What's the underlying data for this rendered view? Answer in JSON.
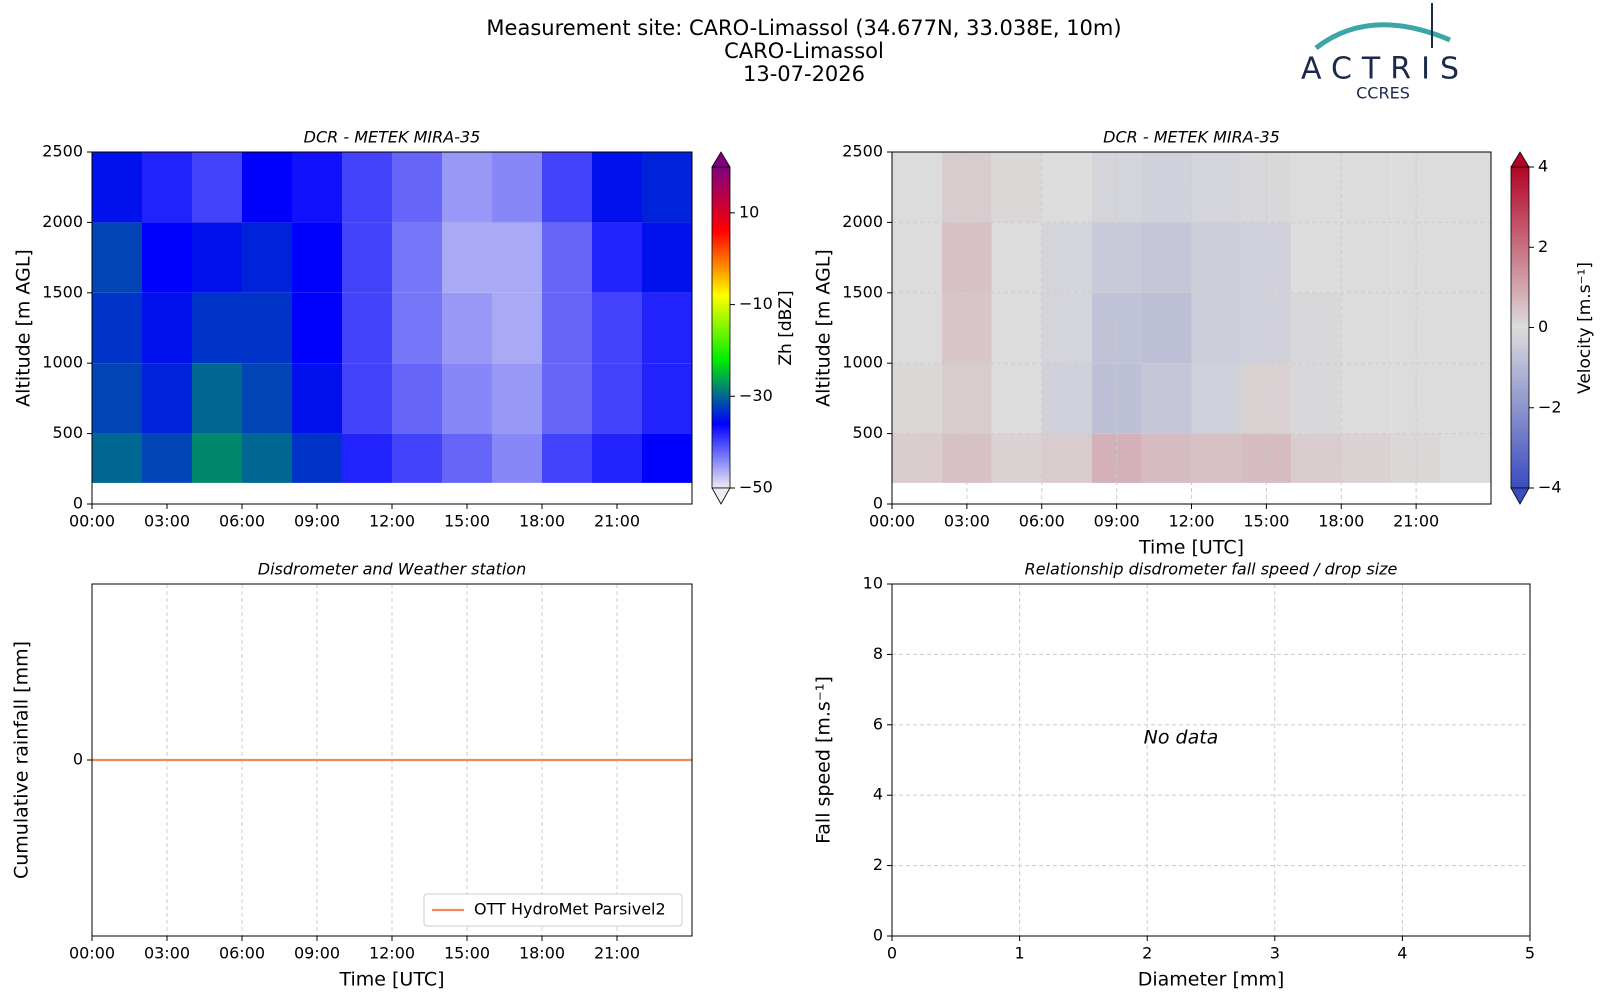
{
  "header": {
    "title": [
      "Measurement site: CARO-Limassol (34.677N, 33.038E, 10m)",
      "CARO-Limassol",
      "13-07-2026"
    ],
    "logo": "ACTRIS",
    "logo_subtitle": "CCRES"
  },
  "chart_data": [
    {
      "type": "heatmap",
      "title": "DCR - METEK MIRA-35",
      "ylabel": "Altitude [m AGL]",
      "xlim": [
        0,
        24
      ],
      "xticks": [
        {
          "value": 0,
          "label": "00:00"
        },
        {
          "value": 3,
          "label": "03:00"
        },
        {
          "value": 6,
          "label": "06:00"
        },
        {
          "value": 9,
          "label": "09:00"
        },
        {
          "value": 12,
          "label": "12:00"
        },
        {
          "value": 15,
          "label": "15:00"
        },
        {
          "value": 18,
          "label": "18:00"
        },
        {
          "value": 21,
          "label": "21:00"
        }
      ],
      "ylim": [
        0,
        2500
      ],
      "yticks": [
        0,
        500,
        1000,
        1500,
        2000,
        2500
      ],
      "grid": false,
      "x_bins": [
        0,
        2,
        4,
        6,
        8,
        10,
        12,
        14,
        16,
        18,
        20,
        22,
        24
      ],
      "y_bins": [
        150,
        500,
        1000,
        1500,
        2000,
        2500
      ],
      "values": [
        [
          -30,
          -32,
          -28,
          -30,
          -33,
          -38,
          -40,
          -42,
          -44,
          -40,
          -38,
          -36
        ],
        [
          -32,
          -34,
          -30,
          -32,
          -35,
          -40,
          -42,
          -44,
          -45,
          -42,
          -40,
          -38
        ],
        [
          -33,
          -35,
          -33,
          -33,
          -36,
          -40,
          -43,
          -45,
          -46,
          -42,
          -40,
          -38
        ],
        [
          -32,
          -36,
          -35,
          -34,
          -36,
          -40,
          -43,
          -46,
          -46,
          -42,
          -38,
          -35
        ],
        [
          -35,
          -38,
          -40,
          -36,
          -37,
          -40,
          -42,
          -45,
          -44,
          -40,
          -35,
          -34
        ]
      ],
      "colorbar": {
        "label": "Zh [dBZ]",
        "lim": [
          -50,
          20
        ],
        "ticks": [
          {
            "value": -50,
            "label": "−50"
          },
          {
            "value": -30,
            "label": "−30"
          },
          {
            "value": -10,
            "label": "−10"
          },
          10
        ],
        "colormap": [
          "#ececf2",
          "#0000ff",
          "#00ee00",
          "#ffff00",
          "#ff0000",
          "#800080"
        ]
      }
    },
    {
      "type": "heatmap",
      "title": "DCR - METEK MIRA-35",
      "ylabel": "Altitude [m AGL]",
      "xlabel": "Time [UTC]",
      "xlim": [
        0,
        24
      ],
      "xticks": [
        {
          "value": 0,
          "label": "00:00"
        },
        {
          "value": 3,
          "label": "03:00"
        },
        {
          "value": 6,
          "label": "06:00"
        },
        {
          "value": 9,
          "label": "09:00"
        },
        {
          "value": 12,
          "label": "12:00"
        },
        {
          "value": 15,
          "label": "15:00"
        },
        {
          "value": 18,
          "label": "18:00"
        },
        {
          "value": 21,
          "label": "21:00"
        }
      ],
      "ylim": [
        0,
        2500
      ],
      "yticks": [
        0,
        500,
        1000,
        1500,
        2000,
        2500
      ],
      "grid": true,
      "x_bins": [
        0,
        2,
        4,
        6,
        8,
        10,
        12,
        14,
        16,
        18,
        20,
        22,
        24
      ],
      "y_bins": [
        150,
        500,
        1000,
        1500,
        2000,
        2500
      ],
      "values": [
        [
          0.3,
          0.5,
          0.2,
          0.3,
          0.8,
          0.6,
          0.5,
          0.6,
          0.3,
          0.2,
          0.1,
          0
        ],
        [
          0.1,
          0.3,
          0,
          -0.3,
          -0.8,
          -0.6,
          -0.3,
          0.2,
          -0.1,
          0,
          0,
          0
        ],
        [
          0,
          0.4,
          0,
          -0.2,
          -0.7,
          -0.8,
          -0.4,
          -0.3,
          -0.1,
          0,
          0,
          0
        ],
        [
          0,
          0.5,
          0,
          -0.2,
          -0.5,
          -0.6,
          -0.4,
          -0.3,
          0,
          0,
          0,
          0
        ],
        [
          0,
          0.3,
          0.1,
          0,
          -0.2,
          -0.3,
          -0.2,
          -0.1,
          0,
          0,
          0,
          0
        ]
      ],
      "colorbar": {
        "label": "Velocity [m.s⁻¹]",
        "lim": [
          -4,
          4
        ],
        "ticks": [
          {
            "value": -4,
            "label": "−4"
          },
          {
            "value": -2,
            "label": "−2"
          },
          0,
          2,
          4
        ],
        "colormap": [
          "#3b4cc0",
          "#dcdcdc",
          "#b40426"
        ]
      }
    },
    {
      "type": "line",
      "title": "Disdrometer and Weather station",
      "ylabel": "Cumulative rainfall [mm]",
      "xlabel": "Time [UTC]",
      "xlim": [
        0,
        24
      ],
      "xticks": [
        {
          "value": 0,
          "label": "00:00"
        },
        {
          "value": 3,
          "label": "03:00"
        },
        {
          "value": 6,
          "label": "06:00"
        },
        {
          "value": 9,
          "label": "09:00"
        },
        {
          "value": 12,
          "label": "12:00"
        },
        {
          "value": 15,
          "label": "15:00"
        },
        {
          "value": 18,
          "label": "18:00"
        },
        {
          "value": 21,
          "label": "21:00"
        }
      ],
      "ylim": [
        -0.055,
        0.055
      ],
      "yticks": [
        0
      ],
      "grid": true,
      "legend": "lower right",
      "x": [
        0,
        24
      ],
      "series": [
        {
          "name": "OTT HydroMet Parsivel2",
          "color": "#f08a5d",
          "values": [
            0,
            0
          ]
        }
      ]
    },
    {
      "type": "scatter",
      "title": "Relationship disdrometer fall speed / drop size",
      "ylabel": "Fall speed [m.s⁻¹]",
      "xlabel": "Diameter [mm]",
      "xlim": [
        0,
        5
      ],
      "xticks": [
        0,
        1,
        2,
        3,
        4,
        5
      ],
      "ylim": [
        0,
        10
      ],
      "yticks": [
        0,
        2,
        4,
        6,
        8,
        10
      ],
      "grid": true,
      "x": [],
      "values": [],
      "annotation": "No data"
    }
  ]
}
